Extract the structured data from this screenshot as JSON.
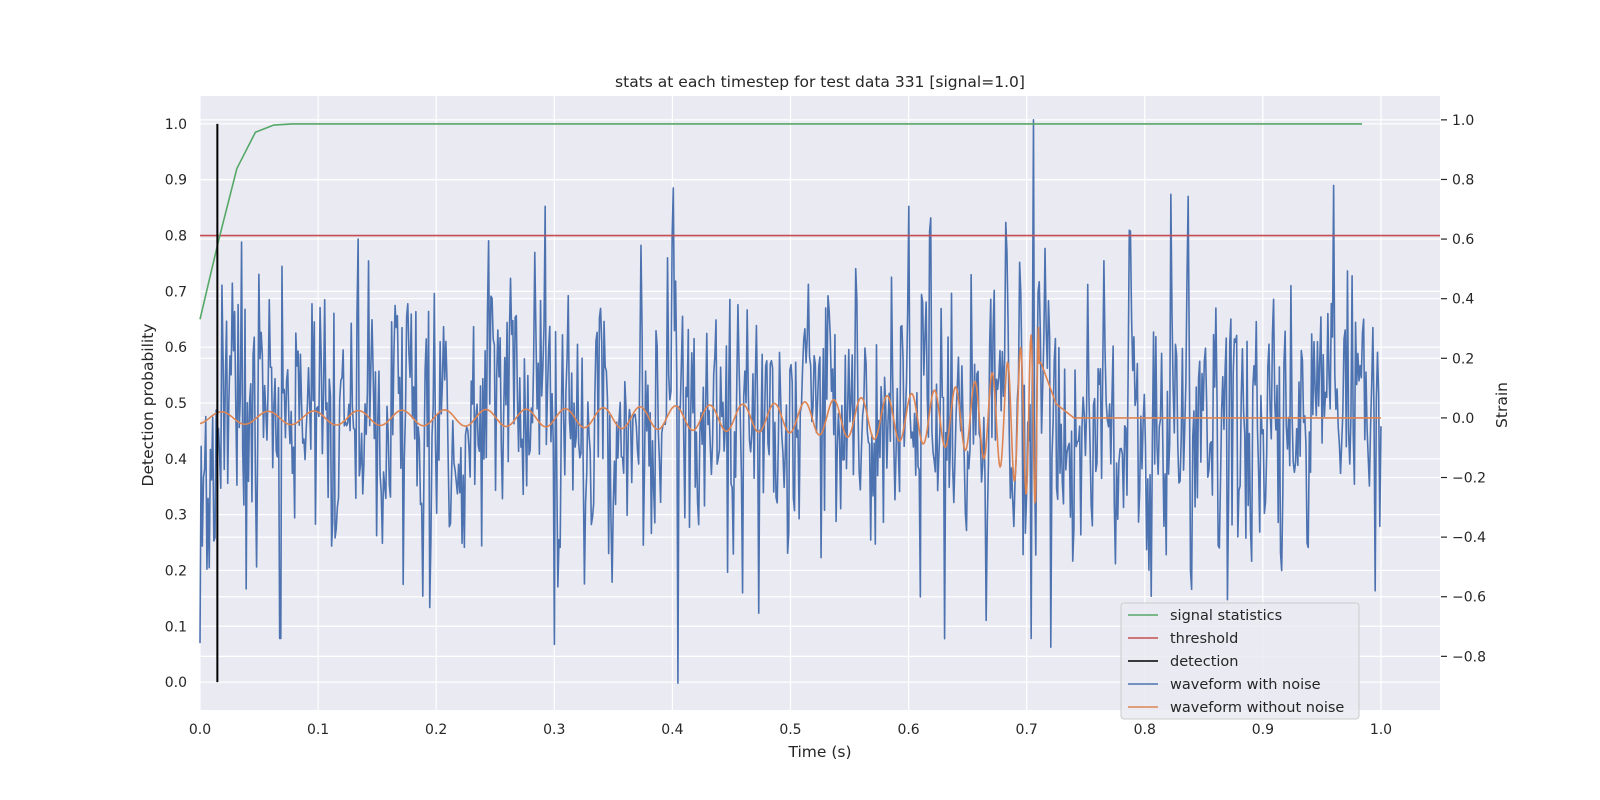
{
  "chart_data": {
    "type": "line",
    "title": "stats at each timestep for test data 331 [signal=1.0]",
    "xlabel": "Time (s)",
    "ylabel": "Detection probability",
    "y2label": "Strain",
    "xlim": [
      0.0,
      1.05
    ],
    "ylim": [
      -0.05,
      1.05
    ],
    "y2lim": [
      -0.98,
      1.08
    ],
    "xticks": [
      "0.0",
      "0.1",
      "0.2",
      "0.3",
      "0.4",
      "0.5",
      "0.6",
      "0.7",
      "0.8",
      "0.9",
      "1.0"
    ],
    "yticks": [
      "0.0",
      "0.1",
      "0.2",
      "0.3",
      "0.4",
      "0.5",
      "0.6",
      "0.7",
      "0.8",
      "0.9",
      "1.0"
    ],
    "y2ticks": [
      "−0.8",
      "−0.6",
      "−0.4",
      "−0.2",
      "0.0",
      "0.2",
      "0.4",
      "0.6",
      "0.8",
      "1.0"
    ],
    "grid": true,
    "legend_position": "lower-right",
    "colors": {
      "background": "#eaeaf2",
      "grid": "#ffffff",
      "signal_statistics": "#55a868",
      "threshold": "#c44e52",
      "detection": "#000000",
      "waveform_with_noise": "#4c72b0",
      "waveform_without_noise": "#dd8452"
    },
    "series": [
      {
        "name": "signal statistics",
        "axis": "left",
        "x": [
          0.0,
          0.0156,
          0.0312,
          0.0469,
          0.0625,
          0.0781,
          0.0938,
          0.2,
          0.4,
          0.6,
          0.8,
          0.984
        ],
        "y": [
          0.65,
          0.79,
          0.92,
          0.985,
          0.998,
          1.0,
          1.0,
          1.0,
          1.0,
          1.0,
          1.0,
          1.0
        ]
      },
      {
        "name": "threshold",
        "axis": "left",
        "x": [
          0.0,
          1.05
        ],
        "y": [
          0.8,
          0.8
        ]
      },
      {
        "name": "detection",
        "axis": "left",
        "x": [
          0.0147,
          0.0147
        ],
        "y": [
          0.0,
          1.0
        ]
      },
      {
        "name": "waveform with noise",
        "axis": "right",
        "noise_sample_count": 1024,
        "x_range": [
          0.0,
          1.0
        ],
        "peak_points": [
          {
            "x": 0.002,
            "y": -0.43
          },
          {
            "x": 0.035,
            "y": 0.59
          },
          {
            "x": 0.068,
            "y": -0.74
          },
          {
            "x": 0.292,
            "y": 0.71
          },
          {
            "x": 0.3,
            "y": -0.76
          },
          {
            "x": 0.405,
            "y": -0.89
          },
          {
            "x": 0.6,
            "y": 0.71
          },
          {
            "x": 0.706,
            "y": 1.0
          },
          {
            "x": 0.704,
            "y": -0.74
          },
          {
            "x": 0.822,
            "y": 0.75
          },
          {
            "x": 0.87,
            "y": -0.61
          },
          {
            "x": 0.96,
            "y": 0.78
          },
          {
            "x": 0.995,
            "y": -0.58
          }
        ]
      },
      {
        "name": "waveform without noise",
        "axis": "right",
        "x_range": [
          0.0,
          1.0
        ],
        "merger_time": 0.712,
        "amplitude_envelope": [
          {
            "x": 0.0,
            "y": 0.02
          },
          {
            "x": 0.3,
            "y": 0.03
          },
          {
            "x": 0.5,
            "y": 0.05
          },
          {
            "x": 0.6,
            "y": 0.08
          },
          {
            "x": 0.65,
            "y": 0.11
          },
          {
            "x": 0.68,
            "y": 0.17
          },
          {
            "x": 0.7,
            "y": 0.26
          },
          {
            "x": 0.712,
            "y": 0.32
          },
          {
            "x": 0.725,
            "y": 0.08
          },
          {
            "x": 0.74,
            "y": 0.0
          },
          {
            "x": 1.0,
            "y": 0.0
          }
        ]
      }
    ]
  }
}
